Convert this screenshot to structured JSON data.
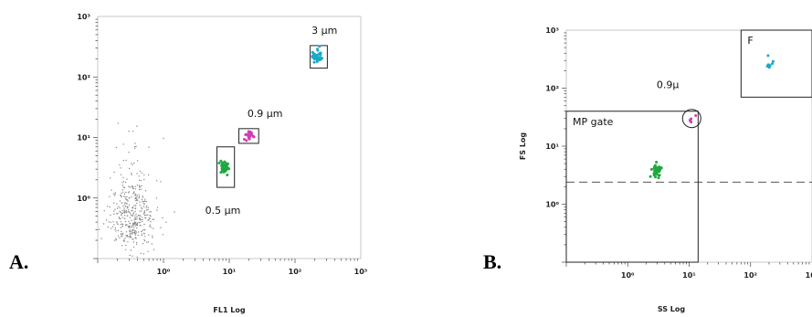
{
  "panels": {
    "a": {
      "letter": "A."
    },
    "b": {
      "letter": "B."
    }
  },
  "colors": {
    "debris": "#8a8a8a",
    "bead_0_5": "#1fa640",
    "bead_0_9": "#d23cb6",
    "bead_3": "#1aa9c8",
    "frame": "#333333"
  },
  "chart_data": [
    {
      "type": "scatter",
      "title": "",
      "xlabel": "FL1 Log",
      "ylabel": "",
      "x_scale": "log",
      "y_scale": "log",
      "xlim": [
        0.1,
        1000
      ],
      "ylim": [
        0.1,
        1000
      ],
      "x_ticks": [
        "10⁰",
        "10¹",
        "10²",
        "10³"
      ],
      "y_ticks": [
        "10⁰",
        "10¹",
        "10²",
        "10³"
      ],
      "series": [
        {
          "color": "#8a8a8a",
          "center": [
            0.32,
            0.45
          ],
          "count": 420
        },
        {
          "color": "#1fa640",
          "center": [
            8.5,
            3.2
          ],
          "count": 40
        },
        {
          "color": "#d23cb6",
          "center": [
            20,
            11
          ],
          "count": 25
        },
        {
          "color": "#1aa9c8",
          "center": [
            220,
            220
          ],
          "count": 35
        }
      ],
      "gates": [
        {
          "x": [
            6.5,
            12
          ],
          "y": [
            1.5,
            7
          ]
        },
        {
          "x": [
            14,
            28
          ],
          "y": [
            8,
            14
          ]
        },
        {
          "x": [
            170,
            310
          ],
          "y": [
            140,
            330
          ]
        }
      ],
      "annotations": [
        {
          "text": "3 µm",
          "x": 280,
          "y": 520
        },
        {
          "text": "0.9 µm",
          "x": 35,
          "y": 22
        },
        {
          "text": "0.5 µm",
          "x": 8,
          "y": 0.55
        }
      ]
    },
    {
      "type": "scatter",
      "title": "",
      "xlabel": "SS Log",
      "ylabel": "FS Log",
      "x_scale": "log",
      "y_scale": "log",
      "xlim": [
        0.1,
        1000
      ],
      "ylim": [
        0.1,
        1000
      ],
      "x_ticks": [
        "10⁰",
        "10¹",
        "10²",
        "10³"
      ],
      "y_ticks": [
        "10⁰",
        "10¹",
        "10²",
        "10³"
      ],
      "series": [
        {
          "color": "#1fa640",
          "center": [
            3,
            3.8
          ],
          "count": 45
        },
        {
          "color": "#d23cb6",
          "center": [
            11,
            30
          ],
          "count": 6
        },
        {
          "color": "#1aa9c8",
          "center": [
            200,
            260
          ],
          "count": 8
        }
      ],
      "gates": [
        {
          "label": "MP gate",
          "x": [
            0.1,
            14
          ],
          "y": [
            0.1,
            40
          ]
        },
        {
          "label": "F",
          "x": [
            70,
            1000
          ],
          "y": [
            70,
            1000
          ]
        }
      ],
      "threshold_y": 2.4,
      "annotations": [
        {
          "text": "0.9µ",
          "x": 4.5,
          "y": 100
        }
      ]
    }
  ]
}
